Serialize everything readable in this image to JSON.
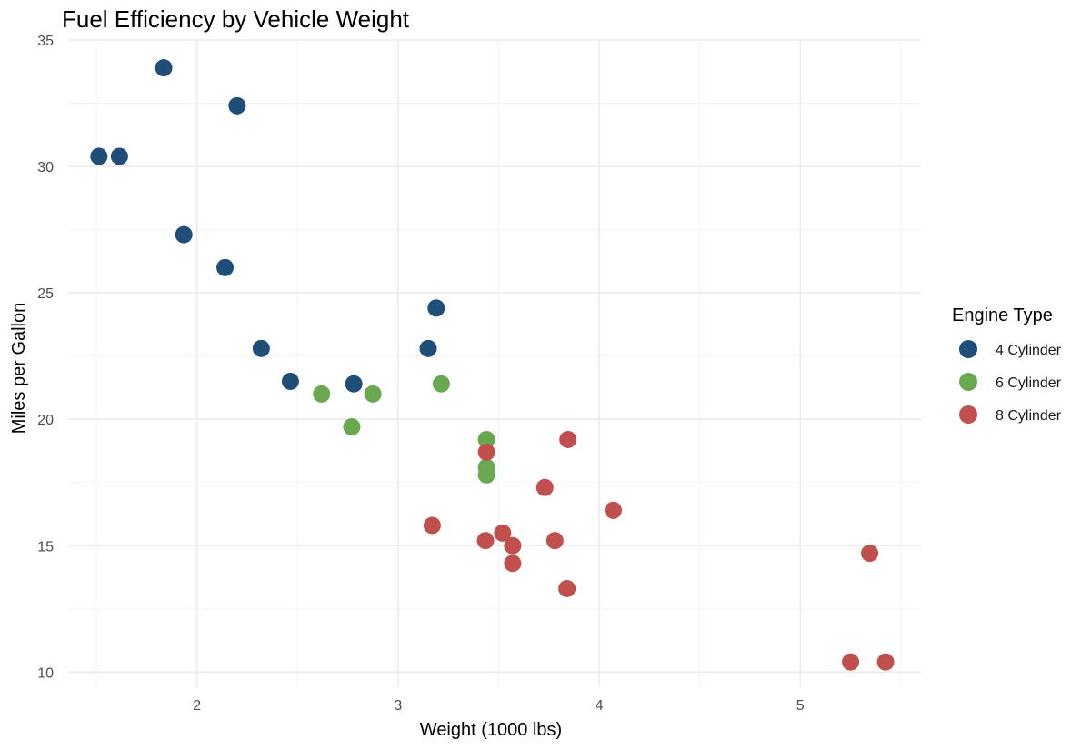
{
  "chart_data": {
    "type": "scatter",
    "title": "Fuel Efficiency by Vehicle Weight",
    "xlabel": "Weight (1000 lbs)",
    "ylabel": "Miles per Gallon",
    "xlim": [
      1.36,
      5.6
    ],
    "ylim": [
      9.4,
      35.0
    ],
    "x_ticks": [
      2,
      3,
      4,
      5
    ],
    "x_tick_labels": [
      "2",
      "3",
      "4",
      "5"
    ],
    "y_ticks": [
      10,
      15,
      20,
      25,
      30,
      35
    ],
    "y_tick_labels": [
      "10",
      "15",
      "20",
      "25",
      "30",
      "35"
    ],
    "x_minor": [
      1.5,
      2.5,
      3.5,
      4.5,
      5.5
    ],
    "y_minor": [
      12.5,
      17.5,
      22.5,
      27.5,
      32.5
    ],
    "grid": true,
    "legend": {
      "title": "Engine Type",
      "position": "right"
    },
    "series": [
      {
        "name": "4 Cylinder",
        "color": "#1f4e79",
        "points": [
          {
            "x": 2.32,
            "y": 22.8
          },
          {
            "x": 3.19,
            "y": 24.4
          },
          {
            "x": 3.15,
            "y": 22.8
          },
          {
            "x": 2.2,
            "y": 32.4
          },
          {
            "x": 1.615,
            "y": 30.4
          },
          {
            "x": 1.835,
            "y": 33.9
          },
          {
            "x": 2.465,
            "y": 21.5
          },
          {
            "x": 1.935,
            "y": 27.3
          },
          {
            "x": 2.14,
            "y": 26.0
          },
          {
            "x": 1.513,
            "y": 30.4
          },
          {
            "x": 2.78,
            "y": 21.4
          }
        ]
      },
      {
        "name": "6 Cylinder",
        "color": "#6aa84f",
        "points": [
          {
            "x": 2.62,
            "y": 21.0
          },
          {
            "x": 2.875,
            "y": 21.0
          },
          {
            "x": 3.215,
            "y": 21.4
          },
          {
            "x": 3.44,
            "y": 18.1
          },
          {
            "x": 3.44,
            "y": 19.2
          },
          {
            "x": 3.44,
            "y": 17.8
          },
          {
            "x": 2.77,
            "y": 19.7
          }
        ]
      },
      {
        "name": "8 Cylinder",
        "color": "#c0504d",
        "points": [
          {
            "x": 3.44,
            "y": 18.7
          },
          {
            "x": 3.57,
            "y": 14.3
          },
          {
            "x": 4.07,
            "y": 16.4
          },
          {
            "x": 3.73,
            "y": 17.3
          },
          {
            "x": 3.78,
            "y": 15.2
          },
          {
            "x": 5.25,
            "y": 10.4
          },
          {
            "x": 5.424,
            "y": 10.4
          },
          {
            "x": 5.345,
            "y": 14.7
          },
          {
            "x": 3.52,
            "y": 15.5
          },
          {
            "x": 3.435,
            "y": 15.2
          },
          {
            "x": 3.84,
            "y": 13.3
          },
          {
            "x": 3.845,
            "y": 19.2
          },
          {
            "x": 3.17,
            "y": 15.8
          },
          {
            "x": 3.57,
            "y": 15.0
          }
        ]
      }
    ]
  }
}
